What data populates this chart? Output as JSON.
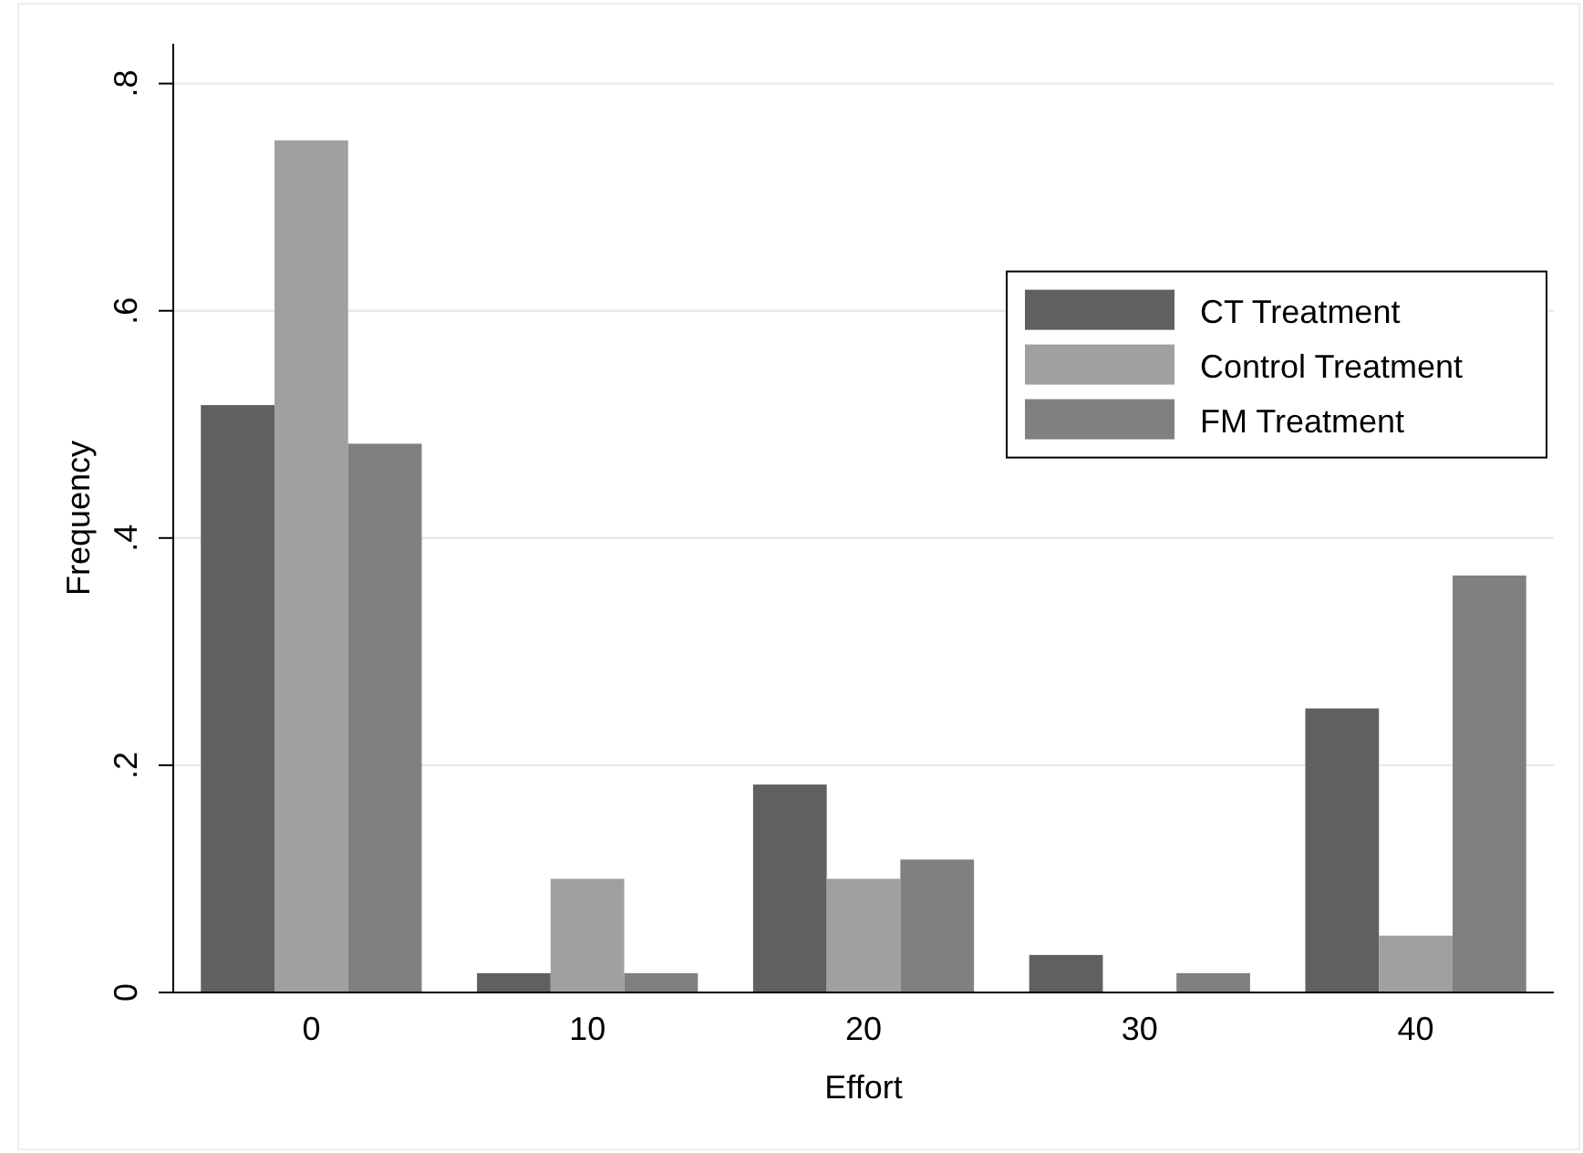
{
  "chart_data": {
    "type": "bar",
    "xlabel": "Effort",
    "ylabel": "Frequency",
    "categories": [
      "0",
      "10",
      "20",
      "30",
      "40"
    ],
    "series": [
      {
        "name": "CT Treatment",
        "color": "#606060",
        "values": [
          0.517,
          0.017,
          0.183,
          0.033,
          0.25
        ]
      },
      {
        "name": "Control Treatment",
        "color": "#a0a0a0",
        "values": [
          0.75,
          0.1,
          0.1,
          0,
          0.05
        ]
      },
      {
        "name": "FM Treatment",
        "color": "#808080",
        "values": [
          0.483,
          0.017,
          0.117,
          0.017,
          0.367
        ]
      }
    ],
    "ylim": [
      0,
      0.835
    ],
    "yticks": [
      {
        "value": 0,
        "label": "0"
      },
      {
        "value": 0.2,
        "label": ".2"
      },
      {
        "value": 0.4,
        "label": ".4"
      },
      {
        "value": 0.6,
        "label": ".6"
      },
      {
        "value": 0.8,
        "label": ".8"
      }
    ],
    "grid": "y",
    "legend": "right"
  }
}
